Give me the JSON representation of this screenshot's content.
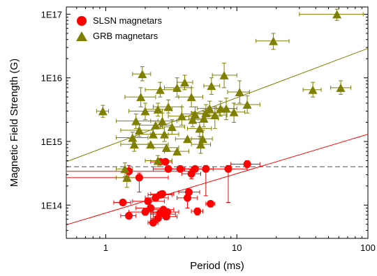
{
  "chart_data": {
    "type": "scatter",
    "x_scale": "log",
    "y_scale": "log",
    "xlim": [
      0.5,
      100
    ],
    "ylim": [
      30000000000000.0,
      1.3e+17
    ],
    "xlabel": "Period (ms)",
    "ylabel": "Magnetic Field Strength (G)",
    "x_ticks": [
      1,
      10,
      100
    ],
    "x_tick_labels": [
      "1",
      "10",
      "100"
    ],
    "y_ticks": [
      100000000000000.0,
      1000000000000000.0,
      1e+16,
      1e+17
    ],
    "y_tick_labels": [
      "1E14",
      "1E15",
      "1E16",
      "1E17"
    ],
    "legend_position": "top-left",
    "grid": false,
    "series": [
      {
        "name": "SLSN magnetars",
        "marker": "circle",
        "color": "#ff0000",
        "points": [
          {
            "x": 1.35,
            "y": 110000000000000.0,
            "xerr": [
              1.15,
              1.55
            ]
          },
          {
            "x": 1.5,
            "y": 68000000000000.0,
            "xerr": [
              1.3,
              1.7
            ]
          },
          {
            "x": 1.5,
            "y": 340000000000000.0,
            "xerr": [
              0.5,
              4.5
            ],
            "yerr": [
              250000000000000.0,
              420000000000000.0
            ]
          },
          {
            "x": 1.8,
            "y": 270000000000000.0,
            "xerr": [
              0.5,
              3.0
            ],
            "yerr": [
              160000000000000.0,
              320000000000000.0
            ]
          },
          {
            "x": 2.0,
            "y": 78000000000000.0,
            "xerr": [
              1.5,
              2.6
            ]
          },
          {
            "x": 2.1,
            "y": 115000000000000.0,
            "xerr": [
              1.6,
              2.8
            ]
          },
          {
            "x": 2.2,
            "y": 90000000000000.0,
            "xerr": [
              1.7,
              2.8
            ]
          },
          {
            "x": 2.3,
            "y": 53000000000000.0,
            "xerr": [
              2.1,
              2.5
            ]
          },
          {
            "x": 2.4,
            "y": 130000000000000.0,
            "xerr": [
              2.0,
              3.0
            ]
          },
          {
            "x": 2.5,
            "y": 62000000000000.0,
            "xerr": [
              2.2,
              2.8
            ]
          },
          {
            "x": 2.6,
            "y": 75000000000000.0,
            "xerr": [
              2.2,
              3.0
            ]
          },
          {
            "x": 2.6,
            "y": 480000000000000.0,
            "xerr": [
              2.2,
              3.0
            ]
          },
          {
            "x": 2.6,
            "y": 145000000000000.0,
            "xerr": [
              2.1,
              3.2
            ]
          },
          {
            "x": 2.7,
            "y": 150000000000000.0,
            "xerr": [
              2.2,
              3.3
            ]
          },
          {
            "x": 2.75,
            "y": 85000000000000.0,
            "xerr": [
              2.2,
              3.3
            ]
          },
          {
            "x": 2.8,
            "y": 72000000000000.0,
            "xerr": [
              2.2,
              3.4
            ]
          },
          {
            "x": 2.85,
            "y": 480000000000000.0,
            "xerr": [
              2.5,
              3.2
            ]
          },
          {
            "x": 2.9,
            "y": 66000000000000.0,
            "xerr": [
              2.3,
              3.5
            ]
          },
          {
            "x": 3.0,
            "y": 370000000000000.0,
            "xerr": [
              2.3,
              3.8
            ]
          },
          {
            "x": 2.95,
            "y": 78000000000000.0,
            "xerr": [
              2.3,
              3.6
            ]
          },
          {
            "x": 3.7,
            "y": 370000000000000.0,
            "xerr": [
              3.0,
              4.5
            ]
          },
          {
            "x": 4.2,
            "y": 130000000000000.0,
            "xerr": [
              3.5,
              5.0
            ],
            "yerr": [
              90000000000000.0,
              170000000000000.0
            ]
          },
          {
            "x": 4.3,
            "y": 160000000000000.0,
            "xerr": [
              3.6,
              5.2
            ]
          },
          {
            "x": 4.5,
            "y": 310000000000000.0,
            "xerr": [
              3.8,
              5.3
            ],
            "yerr": [
              260000000000000.0,
              360000000000000.0
            ]
          },
          {
            "x": 4.8,
            "y": 370000000000000.0,
            "xerr": [
              4.0,
              5.8
            ]
          },
          {
            "x": 5.0,
            "y": 80000000000000.0,
            "xerr": [
              4.5,
              5.5
            ],
            "yerr": [
              70000000000000.0,
              90000000000000.0
            ]
          },
          {
            "x": 5.8,
            "y": 370000000000000.0,
            "xerr": [
              5.0,
              6.6
            ],
            "yerr": [
              140000000000000.0,
              420000000000000.0
            ]
          },
          {
            "x": 6.3,
            "y": 105000000000000.0,
            "xerr": [
              5.8,
              6.8
            ]
          },
          {
            "x": 8.6,
            "y": 370000000000000.0,
            "xerr": [
              5.5,
              12.0
            ],
            "yerr": [
              110000000000000.0,
              420000000000000.0
            ]
          },
          {
            "x": 12.0,
            "y": 440000000000000.0,
            "xerr": [
              9.0,
              15.0
            ],
            "yerr": [
              390000000000000.0,
              500000000000000.0
            ]
          }
        ]
      },
      {
        "name": "GRB magnetars",
        "marker": "triangle",
        "color": "#808000",
        "points": [
          {
            "x": 0.95,
            "y": 3000000000000000.0,
            "xerr": [
              0.85,
              1.05
            ],
            "yerr": [
              2400000000000000.0,
              3700000000000000.0
            ]
          },
          {
            "x": 1.4,
            "y": 370000000000000.0,
            "xerr": [
              1.2,
              1.6
            ],
            "yerr": [
              280000000000000.0,
              460000000000000.0
            ]
          },
          {
            "x": 1.45,
            "y": 270000000000000.0,
            "xerr": [
              1.2,
              1.8
            ],
            "yerr": [
              190000000000000.0,
              340000000000000.0
            ]
          },
          {
            "x": 1.6,
            "y": 1150000000000000.0,
            "xerr": [
              1.2,
              2.1
            ],
            "yerr": [
              900000000000000.0,
              1400000000000000.0
            ]
          },
          {
            "x": 1.65,
            "y": 900000000000000.0,
            "xerr": [
              1.3,
              2.1
            ],
            "yerr": [
              700000000000000.0,
              1200000000000000.0
            ]
          },
          {
            "x": 1.7,
            "y": 2100000000000000.0,
            "xerr": [
              1.2,
              2.5
            ],
            "yerr": [
              1600000000000000.0,
              2700000000000000.0
            ]
          },
          {
            "x": 1.8,
            "y": 1500000000000000.0,
            "xerr": [
              1.3,
              2.3
            ],
            "yerr": [
              1200000000000000.0,
              1900000000000000.0
            ]
          },
          {
            "x": 1.85,
            "y": 5000000000000000.0,
            "xerr": [
              1.4,
              2.4
            ],
            "yerr": [
              3500000000000000.0,
              7000000000000000.0
            ]
          },
          {
            "x": 1.9,
            "y": 1.15e+16,
            "xerr": [
              1.6,
              2.2
            ],
            "yerr": [
              9000000000000000.0,
              1.5e+16
            ]
          },
          {
            "x": 2.0,
            "y": 3000000000000000.0,
            "xerr": [
              1.5,
              2.7
            ],
            "yerr": [
              2200000000000000.0,
              4000000000000000.0
            ]
          },
          {
            "x": 2.2,
            "y": 900000000000000.0,
            "xerr": [
              1.6,
              3.0
            ]
          },
          {
            "x": 2.3,
            "y": 1300000000000000.0,
            "xerr": [
              1.8,
              3.0
            ]
          },
          {
            "x": 2.4,
            "y": 1800000000000000.0,
            "xerr": [
              1.8,
              3.2
            ]
          },
          {
            "x": 2.5,
            "y": 3200000000000000.0,
            "xerr": [
              2.0,
              3.2
            ],
            "yerr": [
              2500000000000000.0,
              4000000000000000.0
            ]
          },
          {
            "x": 2.5,
            "y": 500000000000000.0,
            "xerr": [
              2.0,
              3.2
            ],
            "yerr": [
              400000000000000.0,
              600000000000000.0
            ]
          },
          {
            "x": 2.6,
            "y": 6500000000000000.0,
            "xerr": [
              2.0,
              3.3
            ],
            "yerr": [
              5000000000000000.0,
              8500000000000000.0
            ]
          },
          {
            "x": 2.7,
            "y": 2100000000000000.0,
            "xerr": [
              2.2,
              3.5
            ],
            "yerr": [
              1600000000000000.0,
              2800000000000000.0
            ]
          },
          {
            "x": 2.8,
            "y": 1300000000000000.0,
            "xerr": [
              2.2,
              3.6
            ],
            "yerr": [
              1000000000000000.0,
              1700000000000000.0
            ]
          },
          {
            "x": 2.9,
            "y": 800000000000000.0,
            "xerr": [
              2.3,
              3.6
            ]
          },
          {
            "x": 3.0,
            "y": 3500000000000000.0,
            "xerr": [
              2.3,
              3.8
            ],
            "yerr": [
              2800000000000000.0,
              4500000000000000.0
            ]
          },
          {
            "x": 3.2,
            "y": 1700000000000000.0,
            "xerr": [
              2.6,
              4.0
            ],
            "yerr": [
              1300000000000000.0,
              2200000000000000.0
            ]
          },
          {
            "x": 3.5,
            "y": 7000000000000000.0,
            "xerr": [
              2.8,
              4.5
            ],
            "yerr": [
              5000000000000000.0,
              1e+16
            ]
          },
          {
            "x": 3.5,
            "y": 700000000000000.0,
            "xerr": [
              2.8,
              4.3
            ]
          },
          {
            "x": 3.8,
            "y": 2500000000000000.0,
            "xerr": [
              3.0,
              4.8
            ],
            "yerr": [
              1800000000000000.0,
              3500000000000000.0
            ]
          },
          {
            "x": 4.0,
            "y": 8500000000000000.0,
            "xerr": [
              3.5,
              4.6
            ],
            "yerr": [
              6500000000000000.0,
              1.1e+16
            ]
          },
          {
            "x": 4.2,
            "y": 1100000000000000.0,
            "xerr": [
              3.4,
              5.2
            ]
          },
          {
            "x": 4.5,
            "y": 5000000000000000.0,
            "xerr": [
              3.6,
              5.5
            ],
            "yerr": [
              3500000000000000.0,
              7000000000000000.0
            ]
          },
          {
            "x": 4.6,
            "y": 2200000000000000.0,
            "xerr": [
              3.6,
              5.8
            ],
            "yerr": [
              1700000000000000.0,
              2900000000000000.0
            ]
          },
          {
            "x": 4.8,
            "y": 2700000000000000.0,
            "xerr": [
              3.8,
              6.0
            ],
            "yerr": [
              2000000000000000.0,
              3500000000000000.0
            ]
          },
          {
            "x": 5.2,
            "y": 1600000000000000.0,
            "xerr": [
              4.2,
              6.4
            ],
            "yerr": [
              1200000000000000.0,
              2000000000000000.0
            ]
          },
          {
            "x": 5.3,
            "y": 900000000000000.0,
            "xerr": [
              4.5,
              6.3
            ],
            "yerr": [
              650000000000000.0,
              1200000000000000.0
            ]
          },
          {
            "x": 5.5,
            "y": 1100000000000000.0,
            "xerr": [
              4.5,
              6.5
            ],
            "yerr": [
              800000000000000.0,
              1500000000000000.0
            ]
          },
          {
            "x": 5.6,
            "y": 2300000000000000.0,
            "xerr": [
              4.3,
              7.2
            ],
            "yerr": [
              1700000000000000.0,
              3000000000000000.0
            ]
          },
          {
            "x": 5.8,
            "y": 2800000000000000.0,
            "xerr": [
              4.5,
              7.4
            ],
            "yerr": [
              2000000000000000.0,
              3800000000000000.0
            ]
          },
          {
            "x": 6.2,
            "y": 3300000000000000.0,
            "xerr": [
              5.0,
              7.8
            ],
            "yerr": [
              2500000000000000.0,
              4300000000000000.0
            ]
          },
          {
            "x": 6.4,
            "y": 7500000000000000.0,
            "xerr": [
              5.6,
              7.4
            ],
            "yerr": [
              5500000000000000.0,
              1e+16
            ]
          },
          {
            "x": 6.8,
            "y": 2600000000000000.0,
            "xerr": [
              5.5,
              8.4
            ],
            "yerr": [
              1600000000000000.0,
              3500000000000000.0
            ]
          },
          {
            "x": 7.5,
            "y": 3300000000000000.0,
            "xerr": [
              6.0,
              9.5
            ],
            "yerr": [
              2500000000000000.0,
              4300000000000000.0
            ]
          },
          {
            "x": 8.0,
            "y": 1.1e+16,
            "xerr": [
              6.5,
              10.0
            ],
            "yerr": [
              7000000000000000.0,
              1.7e+16
            ]
          },
          {
            "x": 8.3,
            "y": 3300000000000000.0,
            "xerr": [
              7.0,
              10.0
            ],
            "yerr": [
              2200000000000000.0,
              4800000000000000.0
            ]
          },
          {
            "x": 9.5,
            "y": 2900000000000000.0,
            "xerr": [
              8.0,
              11.5
            ],
            "yerr": [
              2000000000000000.0,
              4000000000000000.0
            ]
          },
          {
            "x": 10.5,
            "y": 6000000000000000.0,
            "xerr": [
              8.5,
              12.5
            ],
            "yerr": [
              4000000000000000.0,
              9000000000000000.0
            ]
          },
          {
            "x": 12.0,
            "y": 3800000000000000.0,
            "xerr": [
              9.5,
              15.0
            ],
            "yerr": [
              2800000000000000.0,
              5200000000000000.0
            ]
          },
          {
            "x": 19.0,
            "y": 3.8e+16,
            "xerr": [
              14.0,
              25.0
            ],
            "yerr": [
              2.8e+16,
              5e+16
            ]
          },
          {
            "x": 38.0,
            "y": 6500000000000000.0,
            "xerr": [
              32.0,
              44.0
            ],
            "yerr": [
              5000000000000000.0,
              8500000000000000.0
            ]
          },
          {
            "x": 58.0,
            "y": 1e+17,
            "xerr": [
              30.0,
              92.0
            ],
            "yerr": [
              8e+16,
              1.2e+17
            ]
          },
          {
            "x": 62.0,
            "y": 7000000000000000.0,
            "xerr": [
              52.0,
              74.0
            ],
            "yerr": [
              5500000000000000.0,
              9000000000000000.0
            ]
          }
        ]
      }
    ],
    "fit_lines": [
      {
        "series": "GRB magnetars",
        "color": "#808000",
        "points": [
          [
            0.5,
            480000000000000.0
          ],
          [
            100,
            2.9e+16
          ]
        ]
      },
      {
        "series": "SLSN magnetars",
        "color": "#ff0000",
        "points": [
          [
            0.5,
            49000000000000.0
          ],
          [
            100,
            1300000000000000.0
          ]
        ]
      }
    ],
    "reference_line": {
      "y": 400000000000000.0,
      "style": "dashed",
      "color": "#808080"
    }
  }
}
